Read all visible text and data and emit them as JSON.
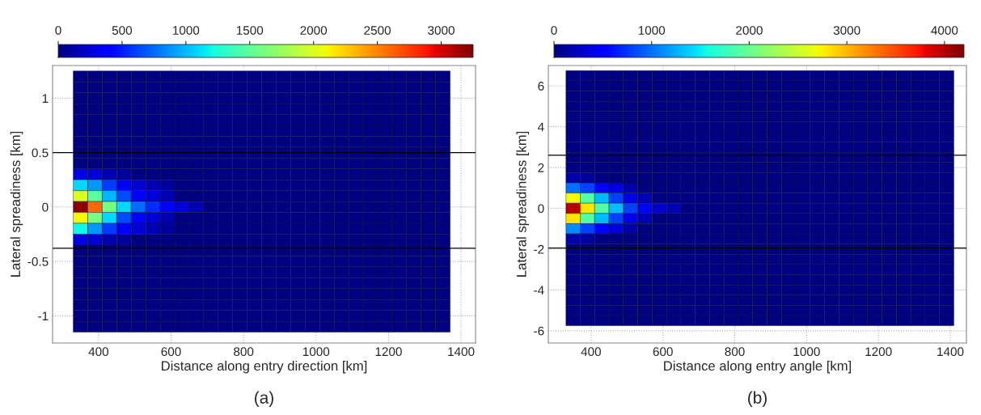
{
  "chart_data": [
    {
      "type": "heatmap",
      "xlabel": "Distance along entry direction [km]",
      "ylabel": "Lateral spreadiness [km]",
      "annotations": [
        "(a)"
      ],
      "xlim": [
        273,
        1440
      ],
      "ylim": [
        -1.25,
        1.3
      ],
      "xticks": [
        400,
        600,
        800,
        1000,
        1200,
        1400
      ],
      "yticks": [
        -1,
        -0.5,
        0,
        0.5,
        1
      ],
      "grid": true,
      "clim": [
        0,
        3250
      ],
      "cticks": [
        0,
        500,
        1000,
        1500,
        2000,
        2500,
        3000
      ],
      "ref_lines": [
        {
          "axis": "y",
          "value": 0.5,
          "color": "#000000"
        },
        {
          "axis": "y",
          "value": -0.38,
          "color": "#000000"
        }
      ],
      "x": [
        350,
        390,
        430,
        470,
        510,
        550,
        590,
        630,
        670,
        710,
        750,
        790,
        830,
        870,
        910,
        950,
        990,
        1030,
        1070,
        1110,
        1150,
        1190,
        1230,
        1270,
        1310,
        1350
      ],
      "y": [
        1.2,
        1.1,
        1.0,
        0.9,
        0.8,
        0.7,
        0.6,
        0.5,
        0.4,
        0.3,
        0.2,
        0.1,
        0,
        -0.1,
        -0.2,
        -0.3,
        -0.4,
        -0.5,
        -0.6,
        -0.7,
        -0.8,
        -0.9,
        -1.0,
        -1.1
      ],
      "cells": [
        [
          0,
          0,
          0,
          0,
          0,
          0,
          0,
          0,
          0,
          0,
          0,
          0,
          0,
          0,
          0,
          0,
          0,
          0,
          0,
          0,
          0,
          0,
          0,
          0,
          0,
          0
        ],
        [
          0,
          0,
          0,
          0,
          0,
          0,
          0,
          0,
          0,
          0,
          0,
          0,
          0,
          0,
          0,
          0,
          0,
          0,
          0,
          0,
          0,
          0,
          0,
          0,
          0,
          0
        ],
        [
          0,
          0,
          0,
          0,
          0,
          0,
          0,
          0,
          0,
          0,
          0,
          0,
          0,
          0,
          0,
          0,
          0,
          0,
          0,
          0,
          0,
          0,
          0,
          0,
          0,
          0
        ],
        [
          0,
          0,
          0,
          0,
          0,
          0,
          0,
          0,
          0,
          0,
          0,
          0,
          0,
          0,
          0,
          0,
          0,
          0,
          0,
          0,
          0,
          0,
          0,
          0,
          0,
          0
        ],
        [
          0,
          0,
          0,
          0,
          0,
          0,
          0,
          0,
          0,
          0,
          0,
          0,
          0,
          0,
          0,
          0,
          0,
          0,
          0,
          0,
          0,
          0,
          0,
          0,
          0,
          0
        ],
        [
          0,
          0,
          0,
          0,
          0,
          0,
          0,
          0,
          0,
          0,
          0,
          0,
          0,
          0,
          0,
          0,
          0,
          0,
          0,
          0,
          0,
          0,
          0,
          0,
          0,
          0
        ],
        [
          0,
          0,
          0,
          0,
          0,
          0,
          0,
          0,
          0,
          0,
          0,
          0,
          0,
          0,
          0,
          0,
          0,
          0,
          0,
          0,
          0,
          0,
          0,
          0,
          0,
          0
        ],
        [
          0,
          0,
          0,
          0,
          0,
          0,
          0,
          0,
          0,
          0,
          0,
          0,
          0,
          0,
          0,
          0,
          0,
          0,
          0,
          0,
          0,
          0,
          0,
          0,
          0,
          0
        ],
        [
          0,
          0,
          0,
          0,
          0,
          0,
          0,
          0,
          0,
          0,
          0,
          0,
          0,
          0,
          0,
          0,
          0,
          0,
          0,
          0,
          0,
          0,
          0,
          0,
          0,
          0
        ],
        [
          300,
          250,
          150,
          100,
          0,
          0,
          0,
          0,
          0,
          0,
          0,
          0,
          0,
          0,
          0,
          0,
          0,
          0,
          0,
          0,
          0,
          0,
          0,
          0,
          0,
          0
        ],
        [
          1100,
          900,
          600,
          400,
          250,
          150,
          100,
          0,
          0,
          0,
          0,
          0,
          0,
          0,
          0,
          0,
          0,
          0,
          0,
          0,
          0,
          0,
          0,
          0,
          0,
          0
        ],
        [
          2000,
          1500,
          1000,
          650,
          400,
          250,
          150,
          0,
          0,
          0,
          0,
          0,
          0,
          0,
          0,
          0,
          0,
          0,
          0,
          0,
          0,
          0,
          0,
          0,
          0,
          0
        ],
        [
          3200,
          2600,
          1600,
          1100,
          750,
          550,
          350,
          250,
          150,
          0,
          0,
          0,
          0,
          0,
          0,
          0,
          0,
          0,
          0,
          0,
          0,
          0,
          0,
          0,
          0,
          0
        ],
        [
          2100,
          1600,
          1100,
          650,
          400,
          250,
          150,
          0,
          0,
          0,
          0,
          0,
          0,
          0,
          0,
          0,
          0,
          0,
          0,
          0,
          0,
          0,
          0,
          0,
          0,
          0
        ],
        [
          1200,
          900,
          600,
          400,
          250,
          150,
          100,
          0,
          0,
          0,
          0,
          0,
          0,
          0,
          0,
          0,
          0,
          0,
          0,
          0,
          0,
          0,
          0,
          0,
          0,
          0
        ],
        [
          300,
          250,
          150,
          100,
          0,
          0,
          0,
          0,
          0,
          0,
          0,
          0,
          0,
          0,
          0,
          0,
          0,
          0,
          0,
          0,
          0,
          0,
          0,
          0,
          0,
          0
        ],
        [
          0,
          0,
          0,
          0,
          0,
          0,
          0,
          0,
          0,
          0,
          0,
          0,
          0,
          0,
          0,
          0,
          0,
          0,
          0,
          0,
          0,
          0,
          0,
          0,
          0,
          0
        ],
        [
          0,
          0,
          0,
          0,
          0,
          0,
          0,
          0,
          0,
          0,
          0,
          0,
          0,
          0,
          0,
          0,
          0,
          0,
          0,
          0,
          0,
          0,
          0,
          0,
          0,
          0
        ],
        [
          0,
          0,
          0,
          0,
          0,
          0,
          0,
          0,
          0,
          0,
          0,
          0,
          0,
          0,
          0,
          0,
          0,
          0,
          0,
          0,
          0,
          0,
          0,
          0,
          0,
          0
        ],
        [
          0,
          0,
          0,
          0,
          0,
          0,
          0,
          0,
          0,
          0,
          0,
          0,
          0,
          0,
          0,
          0,
          0,
          0,
          0,
          0,
          0,
          0,
          0,
          0,
          0,
          0
        ],
        [
          0,
          0,
          0,
          0,
          0,
          0,
          0,
          0,
          0,
          0,
          0,
          0,
          0,
          0,
          0,
          0,
          0,
          0,
          0,
          0,
          0,
          0,
          0,
          0,
          0,
          0
        ],
        [
          0,
          0,
          0,
          0,
          0,
          0,
          0,
          0,
          0,
          0,
          0,
          0,
          0,
          0,
          0,
          0,
          0,
          0,
          0,
          0,
          0,
          0,
          0,
          0,
          0,
          0
        ],
        [
          0,
          0,
          0,
          0,
          0,
          0,
          0,
          0,
          0,
          0,
          0,
          0,
          0,
          0,
          0,
          0,
          0,
          0,
          0,
          0,
          0,
          0,
          0,
          0,
          0,
          0
        ],
        [
          0,
          0,
          0,
          0,
          0,
          0,
          0,
          0,
          0,
          0,
          0,
          0,
          0,
          0,
          0,
          0,
          0,
          0,
          0,
          0,
          0,
          0,
          0,
          0,
          0,
          0
        ]
      ]
    },
    {
      "type": "heatmap",
      "xlabel": "Distance along entry angle [km]",
      "ylabel": "Lateral spreadiness [km]",
      "annotations": [
        "(b)"
      ],
      "xlim": [
        281,
        1445
      ],
      "ylim": [
        -6.6,
        7.0
      ],
      "xticks": [
        400,
        600,
        800,
        1000,
        1200,
        1400
      ],
      "yticks": [
        -6,
        -4,
        -2,
        0,
        2,
        4,
        6
      ],
      "grid": true,
      "clim": [
        0,
        4200
      ],
      "cticks": [
        0,
        1000,
        2000,
        3000,
        4000
      ],
      "ref_lines": [
        {
          "axis": "y",
          "value": 2.6,
          "color": "#000000"
        },
        {
          "axis": "y",
          "value": -1.95,
          "color": "#000000"
        }
      ],
      "x": [
        350,
        390,
        430,
        470,
        510,
        550,
        590,
        630,
        670,
        710,
        750,
        790,
        830,
        870,
        910,
        950,
        990,
        1030,
        1070,
        1110,
        1150,
        1190,
        1230,
        1270,
        1310,
        1350,
        1390
      ],
      "y": [
        6.5,
        6.0,
        5.5,
        5.0,
        4.5,
        4.0,
        3.5,
        3.0,
        2.5,
        2.0,
        1.5,
        1.0,
        0.5,
        0,
        -0.5,
        -1.0,
        -1.5,
        -2.0,
        -2.5,
        -3.0,
        -3.5,
        -4.0,
        -4.5,
        -5.0,
        -5.5
      ],
      "cells": [
        [
          0,
          0,
          0,
          0,
          0,
          0,
          0,
          0,
          0,
          0,
          0,
          0,
          0,
          0,
          0,
          0,
          0,
          0,
          0,
          0,
          0,
          0,
          0,
          0,
          0,
          0,
          0
        ],
        [
          0,
          0,
          0,
          0,
          0,
          0,
          0,
          0,
          0,
          0,
          0,
          0,
          0,
          0,
          0,
          0,
          0,
          0,
          0,
          0,
          0,
          0,
          0,
          0,
          0,
          0,
          0
        ],
        [
          0,
          0,
          0,
          0,
          0,
          0,
          0,
          0,
          0,
          0,
          0,
          0,
          0,
          0,
          0,
          0,
          0,
          0,
          0,
          0,
          0,
          0,
          0,
          0,
          0,
          0,
          0
        ],
        [
          0,
          0,
          0,
          0,
          0,
          0,
          0,
          0,
          0,
          0,
          0,
          0,
          0,
          0,
          0,
          0,
          0,
          0,
          0,
          0,
          0,
          0,
          0,
          0,
          0,
          0,
          0
        ],
        [
          0,
          0,
          0,
          0,
          0,
          0,
          0,
          0,
          0,
          0,
          0,
          0,
          0,
          0,
          0,
          0,
          0,
          0,
          0,
          0,
          0,
          0,
          0,
          0,
          0,
          0,
          0
        ],
        [
          0,
          0,
          0,
          0,
          0,
          0,
          0,
          0,
          0,
          0,
          0,
          0,
          0,
          0,
          0,
          0,
          0,
          0,
          0,
          0,
          0,
          0,
          0,
          0,
          0,
          0,
          0
        ],
        [
          0,
          0,
          0,
          0,
          0,
          0,
          0,
          0,
          0,
          0,
          0,
          0,
          0,
          0,
          0,
          0,
          0,
          0,
          0,
          0,
          0,
          0,
          0,
          0,
          0,
          0,
          0
        ],
        [
          0,
          0,
          0,
          0,
          0,
          0,
          0,
          0,
          0,
          0,
          0,
          0,
          0,
          0,
          0,
          0,
          0,
          0,
          0,
          0,
          0,
          0,
          0,
          0,
          0,
          0,
          0
        ],
        [
          0,
          0,
          0,
          0,
          0,
          0,
          0,
          0,
          0,
          0,
          0,
          0,
          0,
          0,
          0,
          0,
          0,
          0,
          0,
          0,
          0,
          0,
          0,
          0,
          0,
          0,
          0
        ],
        [
          0,
          0,
          0,
          0,
          0,
          0,
          0,
          0,
          0,
          0,
          0,
          0,
          0,
          0,
          0,
          0,
          0,
          0,
          0,
          0,
          0,
          0,
          0,
          0,
          0,
          0,
          0
        ],
        [
          150,
          100,
          0,
          0,
          0,
          0,
          0,
          0,
          0,
          0,
          0,
          0,
          0,
          0,
          0,
          0,
          0,
          0,
          0,
          0,
          0,
          0,
          0,
          0,
          0,
          0,
          0
        ],
        [
          1000,
          800,
          550,
          350,
          150,
          0,
          0,
          0,
          0,
          0,
          0,
          0,
          0,
          0,
          0,
          0,
          0,
          0,
          0,
          0,
          0,
          0,
          0,
          0,
          0,
          0,
          0
        ],
        [
          2700,
          1900,
          1300,
          800,
          400,
          200,
          0,
          0,
          0,
          0,
          0,
          0,
          0,
          0,
          0,
          0,
          0,
          0,
          0,
          0,
          0,
          0,
          0,
          0,
          0,
          0,
          0
        ],
        [
          4000,
          2800,
          1900,
          1300,
          800,
          500,
          300,
          200,
          0,
          0,
          0,
          0,
          0,
          0,
          0,
          0,
          0,
          0,
          0,
          0,
          0,
          0,
          0,
          0,
          0,
          0,
          0
        ],
        [
          2800,
          1900,
          1300,
          800,
          400,
          200,
          0,
          0,
          0,
          0,
          0,
          0,
          0,
          0,
          0,
          0,
          0,
          0,
          0,
          0,
          0,
          0,
          0,
          0,
          0,
          0,
          0
        ],
        [
          1100,
          800,
          550,
          350,
          150,
          0,
          0,
          0,
          0,
          0,
          0,
          0,
          0,
          0,
          0,
          0,
          0,
          0,
          0,
          0,
          0,
          0,
          0,
          0,
          0,
          0,
          0
        ],
        [
          150,
          100,
          0,
          0,
          0,
          0,
          0,
          0,
          0,
          0,
          0,
          0,
          0,
          0,
          0,
          0,
          0,
          0,
          0,
          0,
          0,
          0,
          0,
          0,
          0,
          0,
          0
        ],
        [
          0,
          0,
          0,
          0,
          0,
          0,
          0,
          0,
          0,
          0,
          0,
          0,
          0,
          0,
          0,
          0,
          0,
          0,
          0,
          0,
          0,
          0,
          0,
          0,
          0,
          0,
          0
        ],
        [
          0,
          0,
          0,
          0,
          0,
          0,
          0,
          0,
          0,
          0,
          0,
          0,
          0,
          0,
          0,
          0,
          0,
          0,
          0,
          0,
          0,
          0,
          0,
          0,
          0,
          0,
          0
        ],
        [
          0,
          0,
          0,
          0,
          0,
          0,
          0,
          0,
          0,
          0,
          0,
          0,
          0,
          0,
          0,
          0,
          0,
          0,
          0,
          0,
          0,
          0,
          0,
          0,
          0,
          0,
          0
        ],
        [
          0,
          0,
          0,
          0,
          0,
          0,
          0,
          0,
          0,
          0,
          0,
          0,
          0,
          0,
          0,
          0,
          0,
          0,
          0,
          0,
          0,
          0,
          0,
          0,
          0,
          0,
          0
        ],
        [
          0,
          0,
          0,
          0,
          0,
          0,
          0,
          0,
          0,
          0,
          0,
          0,
          0,
          0,
          0,
          0,
          0,
          0,
          0,
          0,
          0,
          0,
          0,
          0,
          0,
          0,
          0
        ],
        [
          0,
          0,
          0,
          0,
          0,
          0,
          0,
          0,
          0,
          0,
          0,
          0,
          0,
          0,
          0,
          0,
          0,
          0,
          0,
          0,
          0,
          0,
          0,
          0,
          0,
          0,
          0
        ],
        [
          0,
          0,
          0,
          0,
          0,
          0,
          0,
          0,
          0,
          0,
          0,
          0,
          0,
          0,
          0,
          0,
          0,
          0,
          0,
          0,
          0,
          0,
          0,
          0,
          0,
          0,
          0
        ],
        [
          0,
          0,
          0,
          0,
          0,
          0,
          0,
          0,
          0,
          0,
          0,
          0,
          0,
          0,
          0,
          0,
          0,
          0,
          0,
          0,
          0,
          0,
          0,
          0,
          0,
          0,
          0
        ]
      ]
    }
  ]
}
